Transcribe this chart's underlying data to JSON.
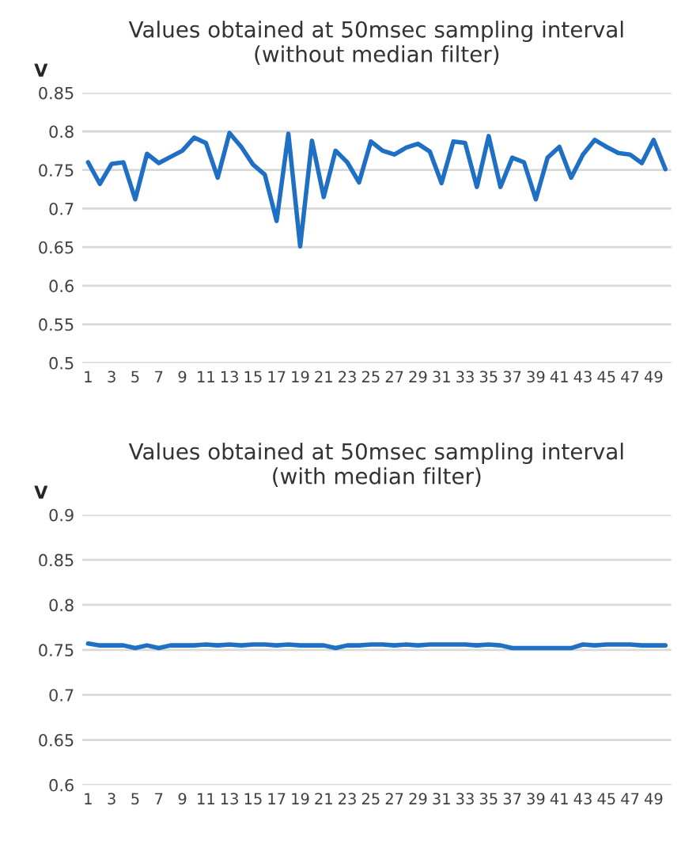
{
  "chart_data": [
    {
      "type": "line",
      "title": "Values obtained at 50msec sampling interval\n(without median filter)",
      "ylabel": "V",
      "categories": [
        "1",
        null,
        "3",
        null,
        "5",
        null,
        "7",
        null,
        "9",
        null,
        "11",
        null,
        "13",
        null,
        "15",
        null,
        "17",
        null,
        "19",
        null,
        "21",
        null,
        "23",
        null,
        "25",
        null,
        "27",
        null,
        "29",
        null,
        "31",
        null,
        "33",
        null,
        "35",
        null,
        "37",
        null,
        "39",
        null,
        "41",
        null,
        "43",
        null,
        "45",
        null,
        "47",
        null,
        "49",
        null
      ],
      "series": [
        {
          "color": "#1f6fc5",
          "values": [
            0.76,
            0.732,
            0.758,
            0.76,
            0.712,
            0.771,
            0.759,
            0.767,
            0.775,
            0.792,
            0.785,
            0.74,
            0.798,
            0.78,
            0.757,
            0.744,
            0.684,
            0.797,
            0.651,
            0.788,
            0.715,
            0.775,
            0.76,
            0.734,
            0.787,
            0.775,
            0.77,
            0.779,
            0.784,
            0.774,
            0.733,
            0.787,
            0.785,
            0.728,
            0.794,
            0.728,
            0.766,
            0.76,
            0.712,
            0.766,
            0.78,
            0.74,
            0.77,
            0.789,
            0.78,
            0.772,
            0.77,
            0.759,
            0.789,
            0.751
          ]
        }
      ],
      "ylim": [
        0.5,
        0.85
      ],
      "yticks": [
        0.5,
        0.55,
        0.6,
        0.65,
        0.7,
        0.75,
        0.8,
        0.85
      ],
      "grid": "y",
      "marker": "none",
      "line_style": "solid"
    },
    {
      "type": "line",
      "title": "Values obtained at 50msec sampling interval\n(with median filter)",
      "ylabel": "V",
      "categories": [
        "1",
        null,
        "3",
        null,
        "5",
        null,
        "7",
        null,
        "9",
        null,
        "11",
        null,
        "13",
        null,
        "15",
        null,
        "17",
        null,
        "19",
        null,
        "21",
        null,
        "23",
        null,
        "25",
        null,
        "27",
        null,
        "29",
        null,
        "31",
        null,
        "33",
        null,
        "35",
        null,
        "37",
        null,
        "39",
        null,
        "41",
        null,
        "43",
        null,
        "45",
        null,
        "47",
        null,
        "49",
        null
      ],
      "series": [
        {
          "color": "#1f6fc5",
          "values": [
            0.757,
            0.755,
            0.755,
            0.755,
            0.752,
            0.755,
            0.752,
            0.755,
            0.755,
            0.755,
            0.756,
            0.755,
            0.756,
            0.755,
            0.756,
            0.756,
            0.755,
            0.756,
            0.755,
            0.755,
            0.755,
            0.752,
            0.755,
            0.755,
            0.756,
            0.756,
            0.755,
            0.756,
            0.755,
            0.756,
            0.756,
            0.756,
            0.756,
            0.755,
            0.756,
            0.755,
            0.752,
            0.752,
            0.752,
            0.752,
            0.752,
            0.752,
            0.756,
            0.755,
            0.756,
            0.756,
            0.756,
            0.755,
            0.755,
            0.755
          ]
        }
      ],
      "ylim": [
        0.6,
        0.9
      ],
      "yticks": [
        0.6,
        0.65,
        0.7,
        0.75,
        0.8,
        0.85,
        0.9
      ],
      "grid": "y",
      "marker": "none",
      "line_style": "solid"
    }
  ]
}
